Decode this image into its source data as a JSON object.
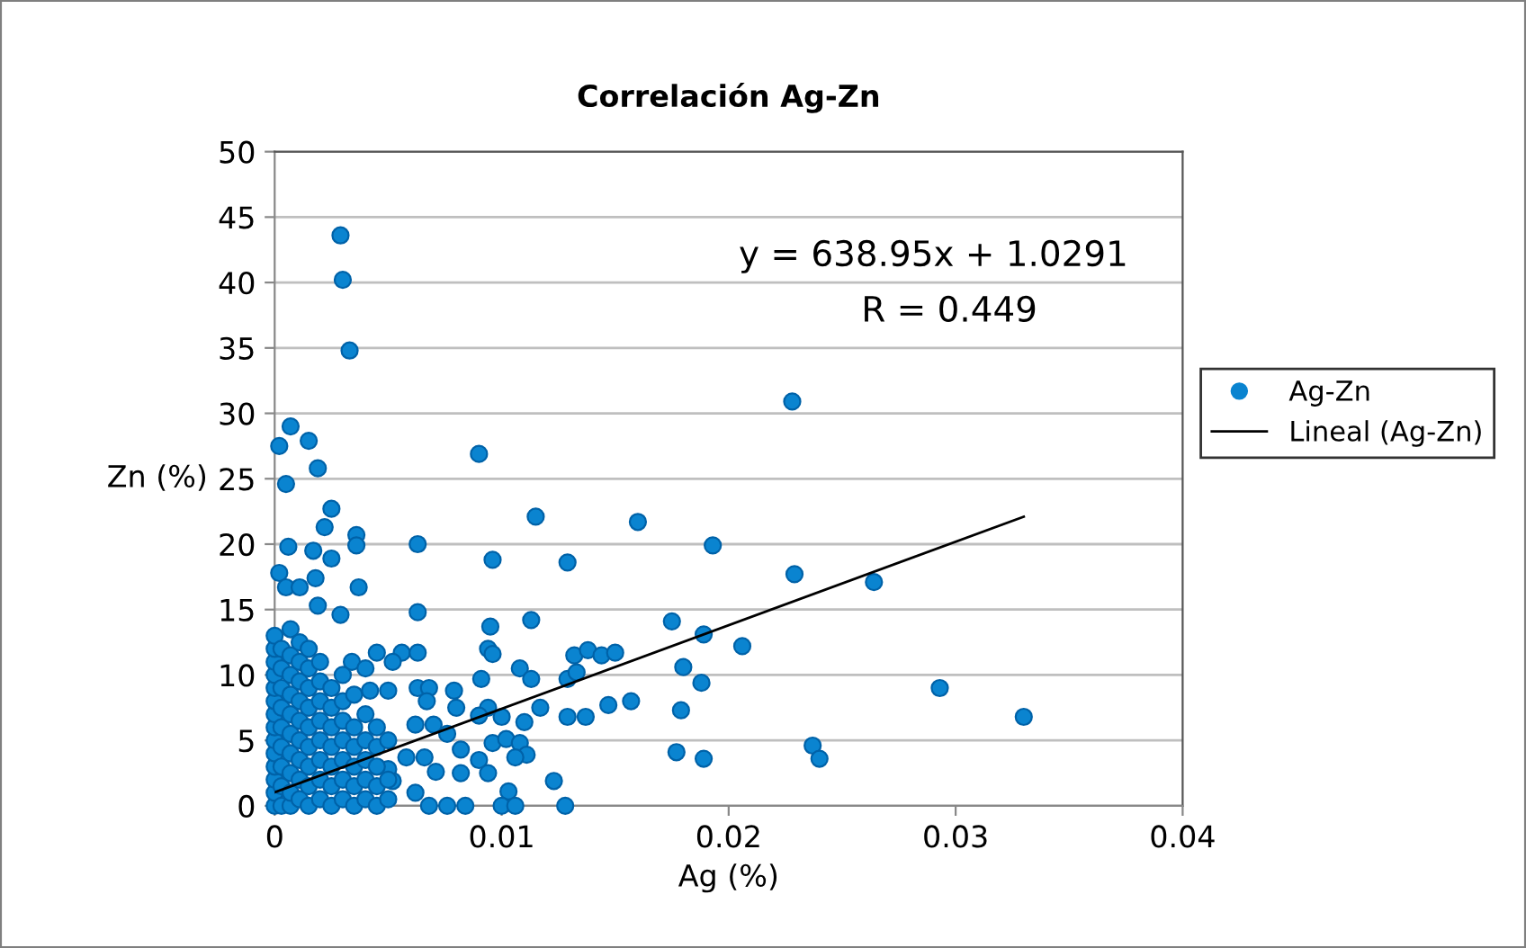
{
  "chart_data": {
    "type": "scatter",
    "title": "Correlación Ag-Zn",
    "xlabel": "Ag (%)",
    "ylabel": "Zn (%)",
    "xlim": [
      0,
      0.04
    ],
    "xticks": [
      0,
      0.01,
      0.02,
      0.03,
      0.04
    ],
    "ylim": [
      0,
      50
    ],
    "yticks": [
      0,
      5,
      10,
      15,
      20,
      25,
      30,
      35,
      40,
      45,
      50
    ],
    "grid": "y",
    "legend": "right",
    "marker": "circle",
    "annotations": [
      "y = 638.95x + 1.0291",
      "R = 0.449"
    ],
    "series": [
      {
        "name": "Ag-Zn",
        "color": "#0a84d0",
        "x": [
          0.0029,
          0.003,
          0.0033,
          0.0007,
          0.0002,
          0.0015,
          0.0019,
          0.0005,
          0.009,
          0.0025,
          0.0022,
          0.0036,
          0.0036,
          0.0063,
          0.0115,
          0.0096,
          0.0129,
          0.0006,
          0.0002,
          0.0017,
          0.0018,
          0.0025,
          0.0005,
          0.0011,
          0.0037,
          0.0019,
          0.0063,
          0.0029,
          0.0095,
          0.0113,
          0.0094,
          0.0096,
          0.0045,
          0.0056,
          0.0063,
          0.0052,
          0.0034,
          0.004,
          0.0108,
          0.0113,
          0.0091,
          0.0129,
          0.0063,
          0.0068,
          0.0079,
          0.0042,
          0.005,
          0.0067,
          0.008,
          0.0117,
          0.0094,
          0.0129,
          0.011,
          0.01,
          0.009,
          0.007,
          0.0062,
          0.0076,
          0.0082,
          0.0096,
          0.0102,
          0.0108,
          0.0111,
          0.0106,
          0.009,
          0.0082,
          0.0094,
          0.0071,
          0.0123,
          0.0103,
          0.01,
          0.0106,
          0.0128,
          0.0084,
          0.0076,
          0.0068,
          0.0062,
          0.0052,
          0.0066,
          0.0058,
          0.005,
          0.0228,
          0.016,
          0.0193,
          0.0229,
          0.0264,
          0.0175,
          0.0189,
          0.0206,
          0.0132,
          0.0138,
          0.0144,
          0.015,
          0.0133,
          0.018,
          0.0188,
          0.0293,
          0.0137,
          0.0147,
          0.0157,
          0.0179,
          0.033,
          0.0177,
          0.0189,
          0.0237,
          0.024,
          0,
          0,
          0,
          0,
          0,
          0,
          0,
          0,
          0,
          0,
          0,
          0,
          0,
          0,
          0.0003,
          0.0003,
          0.0003,
          0.0003,
          0.0003,
          0.0003,
          0.0003,
          0.0003,
          0.0003,
          0.0007,
          0.0007,
          0.0007,
          0.0007,
          0.0007,
          0.0007,
          0.0007,
          0.0007,
          0.0007,
          0.0007,
          0.0011,
          0.0011,
          0.0011,
          0.0011,
          0.0011,
          0.0011,
          0.0011,
          0.0011,
          0.0011,
          0.0015,
          0.0015,
          0.0015,
          0.0015,
          0.0015,
          0.0015,
          0.0015,
          0.0015,
          0.0015,
          0.002,
          0.002,
          0.002,
          0.002,
          0.002,
          0.002,
          0.002,
          0.002,
          0.0025,
          0.0025,
          0.0025,
          0.0025,
          0.0025,
          0.0025,
          0.0025,
          0.003,
          0.003,
          0.003,
          0.003,
          0.003,
          0.003,
          0.003,
          0.0035,
          0.0035,
          0.0035,
          0.0035,
          0.0035,
          0.0035,
          0.004,
          0.004,
          0.004,
          0.004,
          0.004,
          0.0045,
          0.0045,
          0.0045,
          0.0045,
          0.0045,
          0.005,
          0.005,
          0.005
        ],
        "values": [
          43.6,
          40.2,
          34.8,
          29.0,
          27.5,
          27.9,
          25.8,
          24.6,
          26.9,
          22.7,
          21.3,
          20.7,
          19.9,
          20.0,
          22.1,
          18.8,
          18.6,
          19.8,
          17.8,
          19.5,
          17.4,
          18.9,
          16.7,
          16.7,
          16.7,
          15.3,
          14.8,
          14.6,
          13.7,
          14.2,
          12.0,
          11.6,
          11.7,
          11.7,
          11.7,
          11.0,
          11.0,
          10.5,
          10.5,
          9.7,
          9.7,
          9.7,
          9.0,
          9.0,
          8.8,
          8.8,
          8.8,
          8.0,
          7.5,
          7.5,
          7.5,
          6.8,
          6.4,
          6.8,
          6.9,
          6.2,
          6.2,
          5.5,
          4.3,
          4.8,
          5.1,
          4.8,
          3.9,
          3.7,
          3.5,
          2.5,
          2.5,
          2.6,
          1.9,
          1.1,
          0,
          0,
          0,
          0,
          0,
          0,
          1.0,
          1.9,
          3.7,
          3.7,
          2.8,
          30.9,
          21.7,
          19.9,
          17.7,
          17.1,
          14.1,
          13.1,
          12.2,
          11.5,
          11.9,
          11.5,
          11.7,
          10.2,
          10.6,
          9.4,
          9.0,
          6.8,
          7.7,
          8.0,
          7.3,
          6.8,
          4.1,
          3.6,
          4.6,
          3.6,
          0,
          1,
          2,
          3,
          4,
          5,
          6,
          7,
          8,
          9,
          10,
          11,
          12,
          13,
          0,
          1.5,
          3,
          4.5,
          6,
          7.5,
          9,
          10.5,
          12,
          0,
          1,
          2.5,
          4,
          5.5,
          7,
          8.5,
          10,
          11.5,
          13.5,
          0.5,
          2,
          3.5,
          5,
          6.5,
          8,
          9.5,
          11,
          12.5,
          0,
          1.5,
          3,
          4.5,
          6,
          7.5,
          9,
          10.5,
          12,
          0.5,
          2,
          3.5,
          5,
          6.5,
          8,
          9.5,
          11,
          0,
          1.5,
          3,
          4.5,
          6,
          7.5,
          9,
          0.5,
          2,
          3.5,
          5,
          6.5,
          8,
          10,
          0,
          1.5,
          3,
          4.5,
          6,
          8.5,
          0.5,
          2,
          3.5,
          5,
          7,
          0,
          1.5,
          3,
          4.5,
          6,
          0.5,
          2,
          5
        ]
      },
      {
        "name": "Lineal (Ag-Zn)",
        "type": "line",
        "color": "#000000",
        "marker": "none",
        "x": [
          0,
          0.033
        ],
        "values": [
          1.03,
          22.1
        ]
      }
    ]
  }
}
